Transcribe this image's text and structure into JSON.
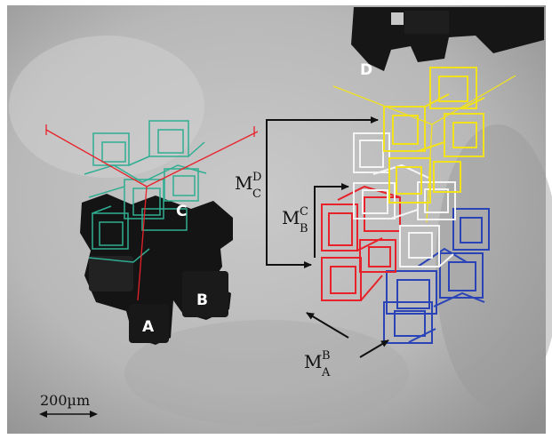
{
  "labels": {
    "A": "A",
    "B": "B",
    "C": "C",
    "D": "D"
  },
  "transforms": [
    {
      "main": "M",
      "sup": "D",
      "sub": "C"
    },
    {
      "main": "M",
      "sup": "C",
      "sub": "B"
    },
    {
      "main": "M",
      "sup": "B",
      "sub": "A"
    }
  ],
  "scale_bar": {
    "label": "200µm"
  },
  "colors": {
    "red": "#e8222a",
    "white": "#f4f4f4",
    "blue": "#2a44b8",
    "yellow": "#f2e21c",
    "teal": "#2fae92",
    "arrow": "#111111"
  }
}
